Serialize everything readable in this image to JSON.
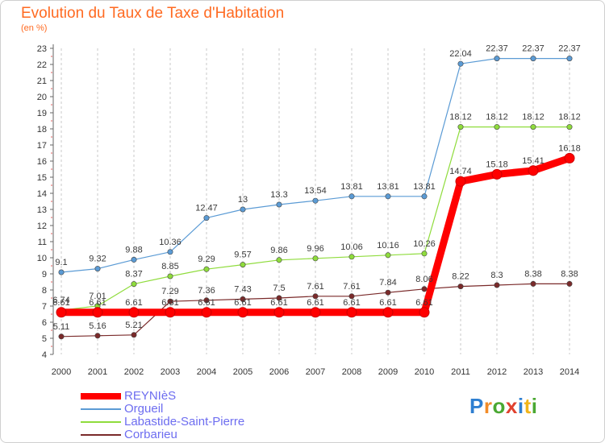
{
  "page": {
    "title": "Evolution du Taux de Taxe d'Habitation",
    "subtitle": "(en %)"
  },
  "logo": {
    "text": "Proxiti"
  },
  "chart_data": {
    "type": "line",
    "title": "Evolution du Taux de Taxe d'Habitation",
    "subtitle": "(en %)",
    "x": [
      2000,
      2001,
      2002,
      2003,
      2004,
      2005,
      2006,
      2007,
      2008,
      2009,
      2010,
      2011,
      2012,
      2013,
      2014
    ],
    "ylim": [
      4,
      23
    ],
    "yticks": [
      4,
      5,
      6,
      7,
      8,
      9,
      10,
      11,
      12,
      13,
      14,
      15,
      16,
      17,
      18,
      19,
      20,
      21,
      22,
      23
    ],
    "grid": "vertical dashed",
    "legend_position": "bottom-left",
    "series": [
      {
        "name": "REYNIèS",
        "color": "#ff0000",
        "values": [
          6.61,
          6.61,
          6.61,
          6.61,
          6.61,
          6.61,
          6.61,
          6.61,
          6.61,
          6.61,
          6.61,
          14.74,
          15.18,
          15.41,
          16.18
        ],
        "labels": [
          "6.61",
          "6.61",
          "6.61",
          "6.61",
          "6.61",
          "6.61",
          "6.61",
          "6.61",
          "6.61",
          "6.61",
          "6.61",
          "14.74",
          "15.18",
          "15.41",
          "16.18"
        ]
      },
      {
        "name": "Orgueil",
        "color": "#5b9bd5",
        "values": [
          9.1,
          9.32,
          9.88,
          10.36,
          12.47,
          13,
          13.3,
          13.54,
          13.81,
          13.81,
          13.81,
          22.04,
          22.37,
          22.37,
          22.37
        ],
        "labels": [
          "9.1",
          "9.32",
          "9.88",
          "10.36",
          "12.47",
          "13",
          "13.3",
          "13.54",
          "13.81",
          "13.81",
          "13.81",
          "22.04",
          "22.37",
          "22.37",
          "22.37"
        ]
      },
      {
        "name": "Labastide-Saint-Pierre",
        "color": "#8fdc3c",
        "values": [
          6.74,
          7.01,
          8.37,
          8.85,
          9.29,
          9.57,
          9.86,
          9.96,
          10.06,
          10.16,
          10.26,
          18.12,
          18.12,
          18.12,
          18.12
        ],
        "labels": [
          "6.74",
          "7.01",
          "8.37",
          "8.85",
          "9.29",
          "9.57",
          "9.86",
          "9.96",
          "10.06",
          "10.16",
          "10.26",
          "18.12",
          "18.12",
          "18.12",
          "18.12"
        ]
      },
      {
        "name": "Corbarieu",
        "color": "#7a2a2a",
        "values": [
          5.11,
          5.16,
          5.21,
          7.29,
          7.36,
          7.43,
          7.5,
          7.61,
          7.61,
          7.84,
          8.06,
          8.22,
          8.3,
          8.38,
          8.38
        ],
        "labels": [
          "5.11",
          "5.16",
          "5.21",
          "7.29",
          "7.36",
          "7.43",
          "7.5",
          "7.61",
          "7.61",
          "7.84",
          "8.06",
          "8.22",
          "8.3",
          "8.38",
          "8.38"
        ]
      }
    ]
  }
}
